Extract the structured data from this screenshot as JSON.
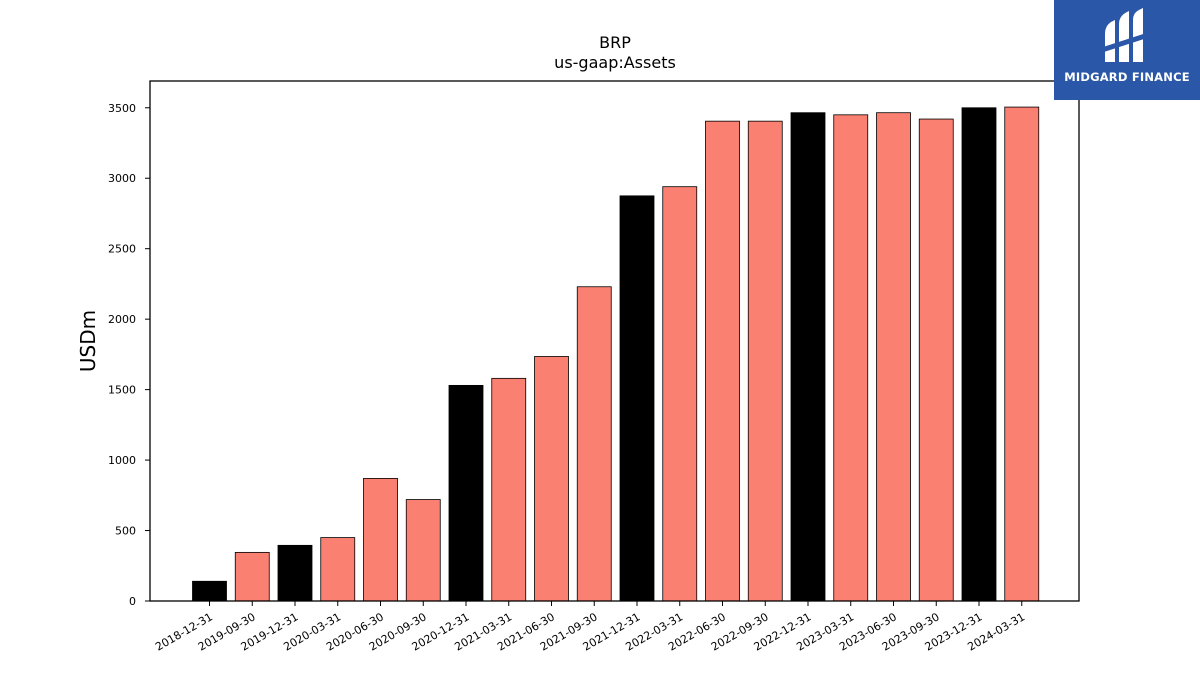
{
  "chart_data": {
    "type": "bar",
    "title": "BRP",
    "subtitle": "us-gaap:Assets",
    "xlabel": "",
    "ylabel": "USDm",
    "ylim": [
      0,
      3690
    ],
    "yticks": [
      0,
      500,
      1000,
      1500,
      2000,
      2500,
      3000,
      3500
    ],
    "grid": false,
    "categories": [
      "2018-12-31",
      "2019-09-30",
      "2019-12-31",
      "2020-03-31",
      "2020-06-30",
      "2020-09-30",
      "2020-12-31",
      "2021-03-31",
      "2021-06-30",
      "2021-09-30",
      "2021-12-31",
      "2022-03-31",
      "2022-06-30",
      "2022-09-30",
      "2022-12-31",
      "2023-03-31",
      "2023-06-30",
      "2023-09-30",
      "2023-12-31",
      "2024-03-31"
    ],
    "values": [
      140,
      345,
      395,
      450,
      870,
      720,
      1530,
      1580,
      1735,
      2230,
      2875,
      2940,
      3405,
      3405,
      3465,
      3450,
      3465,
      3420,
      3500,
      3505
    ],
    "bar_colors": [
      "#000000",
      "#fa8072",
      "#000000",
      "#fa8072",
      "#fa8072",
      "#fa8072",
      "#000000",
      "#fa8072",
      "#fa8072",
      "#fa8072",
      "#000000",
      "#fa8072",
      "#fa8072",
      "#fa8072",
      "#000000",
      "#fa8072",
      "#fa8072",
      "#fa8072",
      "#000000",
      "#fa8072"
    ]
  },
  "logo": {
    "text": "MIDGARD FINANCE",
    "background": "#2a57a8",
    "icon": "midgard-logo-icon"
  }
}
